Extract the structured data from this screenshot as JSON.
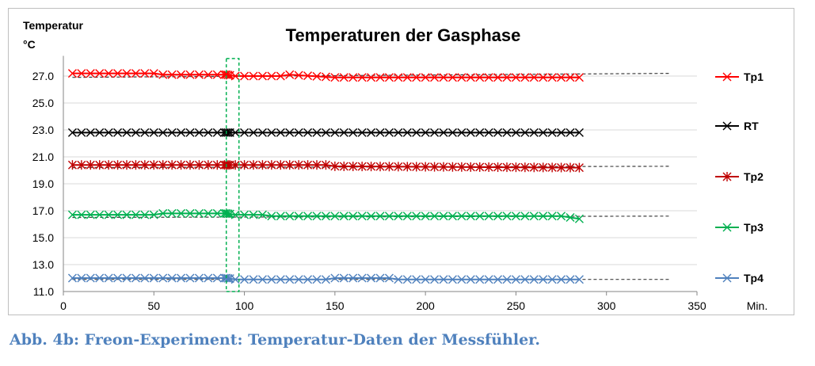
{
  "chart_data": {
    "type": "line",
    "title": "Temperaturen der Gasphase",
    "ylabel": "Temperatur",
    "yunit": "°C",
    "xlabel": "Min.",
    "xlim": [
      0,
      350
    ],
    "ylim": [
      11.0,
      27.0
    ],
    "xticks": [
      "0",
      "50",
      "100",
      "150",
      "200",
      "250",
      "300",
      "350"
    ],
    "yticks": [
      "11.0",
      "13.0",
      "15.0",
      "17.0",
      "19.0",
      "21.0",
      "23.0",
      "25.0",
      "27.0"
    ],
    "legend_position": "right",
    "series": [
      {
        "name": "Tp1",
        "color": "#ff0000",
        "marker": "x",
        "x": [
          5,
          30,
          50,
          55,
          90,
          95,
          120,
          125,
          150,
          285
        ],
        "y": [
          27.2,
          27.2,
          27.2,
          27.1,
          27.1,
          27.0,
          27.0,
          27.1,
          26.9,
          26.9
        ],
        "trend": {
          "x": [
            5,
            335
          ],
          "y": [
            26.9,
            27.2
          ]
        }
      },
      {
        "name": "RT",
        "color": "#000000",
        "marker": "x",
        "x": [
          5,
          285
        ],
        "y": [
          22.8,
          22.8
        ]
      },
      {
        "name": "Tp2",
        "color": "#c00000",
        "marker": "*",
        "x": [
          5,
          145,
          150,
          285
        ],
        "y": [
          20.4,
          20.4,
          20.3,
          20.2
        ],
        "trend": {
          "x": [
            5,
            335
          ],
          "y": [
            20.2,
            20.3
          ]
        }
      },
      {
        "name": "Tp3",
        "color": "#00b050",
        "marker": "x",
        "x": [
          5,
          50,
          55,
          90,
          95,
          100,
          110,
          115,
          275,
          285
        ],
        "y": [
          16.7,
          16.7,
          16.8,
          16.8,
          16.7,
          16.7,
          16.7,
          16.6,
          16.6,
          16.4
        ],
        "trend": {
          "x": [
            5,
            335
          ],
          "y": [
            16.5,
            16.6
          ]
        }
      },
      {
        "name": "Tp4",
        "color": "#4f81bd",
        "marker": "x",
        "x": [
          5,
          90,
          95,
          145,
          150,
          180,
          185,
          285
        ],
        "y": [
          12.0,
          12.0,
          11.9,
          11.9,
          12.0,
          12.0,
          11.9,
          11.9
        ],
        "trend": {
          "x": [
            5,
            335
          ],
          "y": [
            11.9,
            11.9
          ]
        }
      }
    ],
    "highlight": {
      "x": [
        90,
        97
      ],
      "y": [
        11.0,
        28.3
      ],
      "color": "#00b050",
      "style": "dashed"
    }
  },
  "caption": "Abb. 4b: Freon-Experiment: Temperatur-Daten der Messfühler."
}
